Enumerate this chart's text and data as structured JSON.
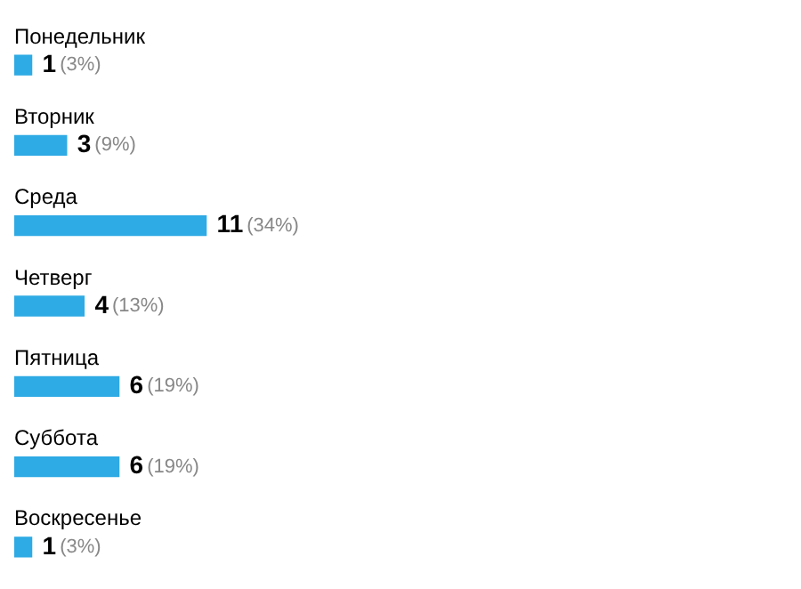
{
  "chart_data": {
    "type": "bar",
    "orientation": "horizontal",
    "categories": [
      "Понедельник",
      "Вторник",
      "Среда",
      "Четверг",
      "Пятница",
      "Суббота",
      "Воскресенье"
    ],
    "values": [
      1,
      3,
      11,
      4,
      6,
      6,
      1
    ],
    "color": "#2eaae4",
    "data_labels": true,
    "annotations": [
      {
        "text": "(3%)",
        "x": 1,
        "y": "Понедельник"
      },
      {
        "text": "(9%)",
        "x": 3,
        "y": "Вторник"
      },
      {
        "text": "(34%)",
        "x": 11,
        "y": "Среда"
      },
      {
        "text": "(13%)",
        "x": 4,
        "y": "Четверг"
      },
      {
        "text": "(19%)",
        "x": 6,
        "y": "Пятница"
      },
      {
        "text": "(19%)",
        "x": 6,
        "y": "Суббота"
      },
      {
        "text": "(3%)",
        "x": 1,
        "y": "Воскресенье"
      }
    ]
  }
}
